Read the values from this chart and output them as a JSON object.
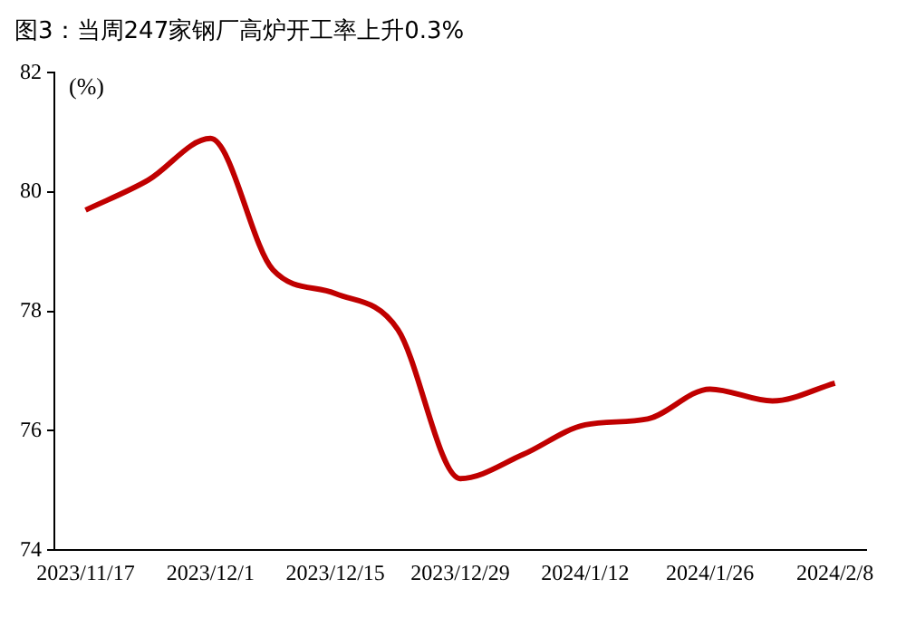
{
  "chart_data": {
    "type": "line",
    "title": "图3：当周247家钢厂高炉开工率上升0.3%",
    "ylabel": "(%)",
    "categories": [
      "2023/11/17",
      null,
      "2023/12/1",
      null,
      "2023/12/15",
      null,
      "2023/12/29",
      null,
      "2024/1/12",
      null,
      "2024/1/26",
      null,
      "2024/2/8"
    ],
    "series": [
      {
        "color": "#c00000",
        "values": [
          79.7,
          80.2,
          80.9,
          78.7,
          78.3,
          77.7,
          75.2,
          75.6,
          76.1,
          76.2,
          76.7,
          76.5,
          76.8
        ]
      }
    ],
    "ylim": [
      74,
      82
    ],
    "yticks": [
      74,
      76,
      78,
      80,
      82
    ],
    "grid": false,
    "legend": false,
    "marker": "none",
    "line_style": "solid"
  }
}
